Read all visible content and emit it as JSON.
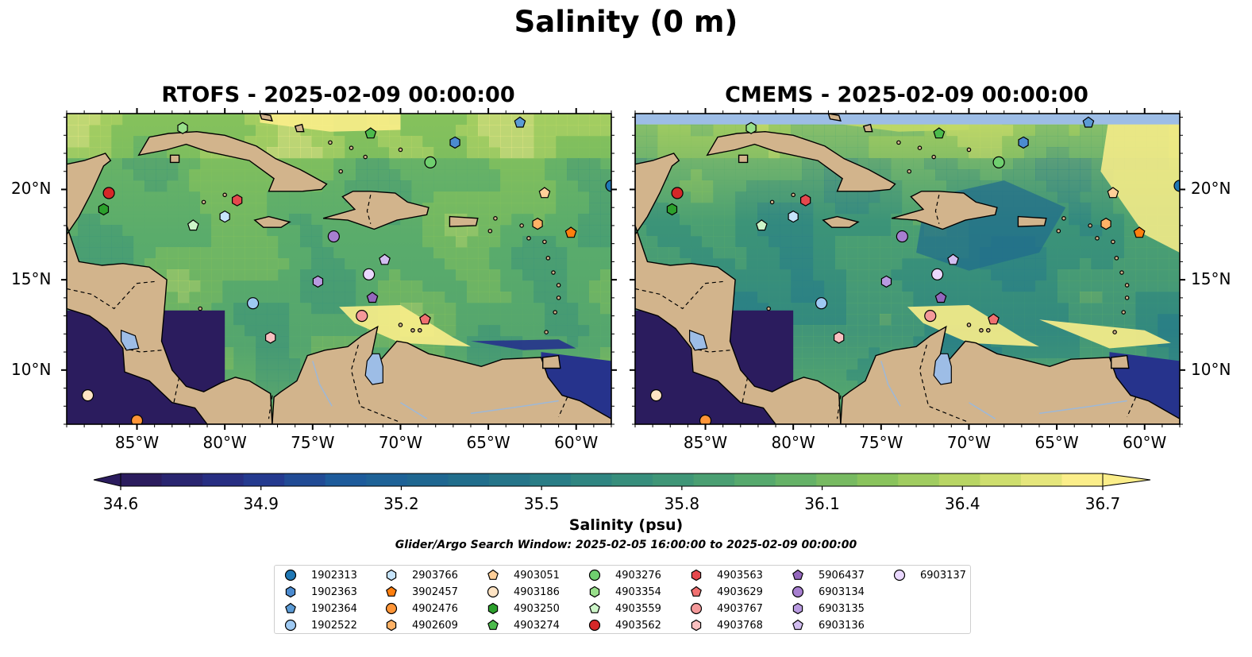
{
  "figure": {
    "title": "Salinity (0 m)",
    "panels": [
      {
        "title": "RTOFS - 2025-02-09 00:00:00",
        "top_cap": false
      },
      {
        "title": "CMEMS - 2025-02-09 00:00:00",
        "top_cap": true
      }
    ]
  },
  "map": {
    "lon_range": [
      -89,
      -58
    ],
    "lat_range": [
      7,
      24.2
    ],
    "lon_ticks": [
      -85,
      -80,
      -75,
      -70,
      -65,
      -60
    ],
    "lon_tick_labels": [
      "85°W",
      "80°W",
      "75°W",
      "70°W",
      "65°W",
      "60°W"
    ],
    "lat_ticks": [
      10,
      15,
      20
    ],
    "lat_tick_labels": [
      "10°N",
      "15°N",
      "20°N"
    ],
    "land_color": "#d2b48c",
    "lake_color": "#9dbde6",
    "cap_color": "#9dbde6"
  },
  "colorbar": {
    "min": 34.6,
    "max": 36.7,
    "extend": "both",
    "ticks": [
      "34.6",
      "34.9",
      "35.2",
      "35.5",
      "35.8",
      "36.1",
      "36.4",
      "36.7"
    ],
    "label": "Salinity (psu)",
    "colormap": [
      "#2b1c5e",
      "#26338c",
      "#1d5d9c",
      "#206b8d",
      "#2a7f85",
      "#3c9478",
      "#5aac6b",
      "#86c25c",
      "#c2d966",
      "#fbee8a"
    ]
  },
  "search_window": "Glider/Argo Search Window: 2025-02-05 16:00:00 to 2025-02-09 00:00:00",
  "floats": [
    {
      "id": "1902313",
      "marker": "circle",
      "color": "#1f77b4",
      "lon": -58.0,
      "lat": 20.2
    },
    {
      "id": "1902363",
      "marker": "hexagon",
      "color": "#4b8bd0",
      "lon": -66.9,
      "lat": 22.6
    },
    {
      "id": "1902364",
      "marker": "pentagon",
      "color": "#5b9bd5",
      "lon": -63.2,
      "lat": 23.7
    },
    {
      "id": "1902522",
      "marker": "circle",
      "color": "#9ec9f2",
      "lon": -78.4,
      "lat": 13.7
    },
    {
      "id": "2903766",
      "marker": "hexagon",
      "color": "#c6e4fb",
      "lon": -80.0,
      "lat": 18.5
    },
    {
      "id": "3902457",
      "marker": "pentagon",
      "color": "#ff7f0e",
      "lon": -60.3,
      "lat": 17.6
    },
    {
      "id": "4902476",
      "marker": "circle",
      "color": "#ff9537",
      "lon": -85.0,
      "lat": 7.2
    },
    {
      "id": "4902609",
      "marker": "hexagon",
      "color": "#ffb266",
      "lon": -62.2,
      "lat": 18.1
    },
    {
      "id": "4903051",
      "marker": "pentagon",
      "color": "#ffcf99",
      "lon": -61.8,
      "lat": 19.8
    },
    {
      "id": "4903186",
      "marker": "circle",
      "color": "#ffe4c4",
      "lon": -87.8,
      "lat": 8.6
    },
    {
      "id": "4903250",
      "marker": "hexagon",
      "color": "#2ca02c",
      "lon": -86.9,
      "lat": 18.9
    },
    {
      "id": "4903274",
      "marker": "pentagon",
      "color": "#4cbb4c",
      "lon": -71.7,
      "lat": 23.1
    },
    {
      "id": "4903276",
      "marker": "circle",
      "color": "#6fcf6f",
      "lon": -68.3,
      "lat": 21.5
    },
    {
      "id": "4903354",
      "marker": "hexagon",
      "color": "#98df8a",
      "lon": -82.4,
      "lat": 23.4
    },
    {
      "id": "4903559",
      "marker": "pentagon",
      "color": "#ccf5c8",
      "lon": -81.8,
      "lat": 18.0
    },
    {
      "id": "4903562",
      "marker": "circle",
      "color": "#d62728",
      "lon": -86.6,
      "lat": 19.8
    },
    {
      "id": "4903563",
      "marker": "hexagon",
      "color": "#e5484d",
      "lon": -79.3,
      "lat": 19.4
    },
    {
      "id": "4903629",
      "marker": "pentagon",
      "color": "#f07070",
      "lon": -68.6,
      "lat": 12.8
    },
    {
      "id": "4903767",
      "marker": "circle",
      "color": "#f4999a",
      "lon": -72.2,
      "lat": 13.0
    },
    {
      "id": "4903768",
      "marker": "hexagon",
      "color": "#fac0c0",
      "lon": -77.4,
      "lat": 11.8
    },
    {
      "id": "5906437",
      "marker": "pentagon",
      "color": "#9467bd",
      "lon": -71.6,
      "lat": 14.0
    },
    {
      "id": "6903134",
      "marker": "circle",
      "color": "#a77fd0",
      "lon": -73.8,
      "lat": 17.4
    },
    {
      "id": "6903135",
      "marker": "hexagon",
      "color": "#b89ae0",
      "lon": -74.7,
      "lat": 14.9
    },
    {
      "id": "6903136",
      "marker": "pentagon",
      "color": "#d2bdf0",
      "lon": -70.9,
      "lat": 16.1
    },
    {
      "id": "6903137",
      "marker": "circle",
      "color": "#ead8ff",
      "lon": -71.8,
      "lat": 15.3
    }
  ]
}
